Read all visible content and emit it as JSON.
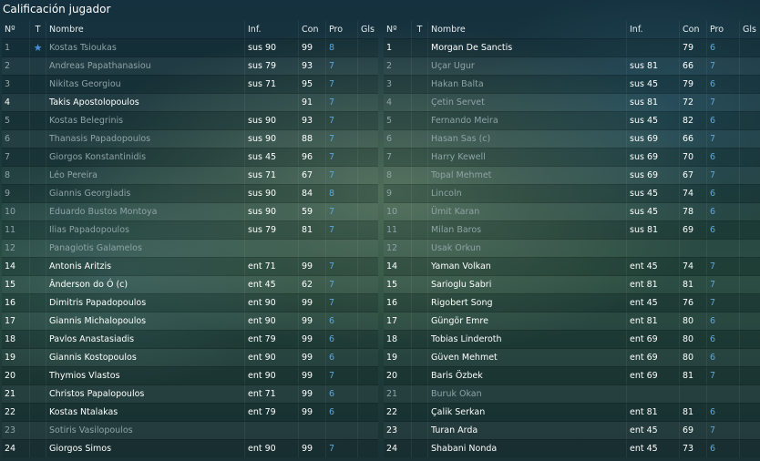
{
  "window": {
    "title": "Calificación jugador"
  },
  "columns": {
    "num": "Nº",
    "t": "T",
    "name": "Nombre",
    "inf": "Inf.",
    "con": "Con",
    "pro": "Pro",
    "gls": "Gls"
  },
  "left": [
    {
      "num": "1",
      "t": "star",
      "name": "Kostas Tsioukas",
      "inf": "sus 90",
      "con": "99",
      "pro": "8",
      "style": "dim"
    },
    {
      "num": "2",
      "t": "",
      "name": "Andreas Papathanasiou",
      "inf": "sus 79",
      "con": "93",
      "pro": "7",
      "style": "dim"
    },
    {
      "num": "3",
      "t": "",
      "name": "Nikitas Georgiou",
      "inf": "sus 71",
      "con": "95",
      "pro": "7",
      "style": "dim"
    },
    {
      "num": "4",
      "t": "",
      "name": "Takis Apostolopoulos",
      "inf": "",
      "con": "91",
      "pro": "7",
      "style": "bright"
    },
    {
      "num": "5",
      "t": "",
      "name": "Kostas Belegrinis",
      "inf": "sus 90",
      "con": "93",
      "pro": "7",
      "style": "dim"
    },
    {
      "num": "6",
      "t": "",
      "name": "Thanasis Papadopoulos",
      "inf": "sus 90",
      "con": "88",
      "pro": "7",
      "style": "dim"
    },
    {
      "num": "7",
      "t": "",
      "name": "Giorgos Konstantinidis",
      "inf": "sus 45",
      "con": "96",
      "pro": "7",
      "style": "dim"
    },
    {
      "num": "8",
      "t": "",
      "name": "Léo Pereira",
      "inf": "sus 71",
      "con": "67",
      "pro": "7",
      "style": "dim"
    },
    {
      "num": "9",
      "t": "",
      "name": "Giannis Georgiadis",
      "inf": "sus 90",
      "con": "84",
      "pro": "8",
      "style": "dim"
    },
    {
      "num": "10",
      "t": "",
      "name": "Eduardo Bustos Montoya",
      "inf": "sus 90",
      "con": "59",
      "pro": "7",
      "style": "dim"
    },
    {
      "num": "11",
      "t": "",
      "name": "Ilias Papadopoulos",
      "inf": "sus 79",
      "con": "81",
      "pro": "7",
      "style": "dim"
    },
    {
      "num": "12",
      "t": "",
      "name": "Panagiotis Galamelos",
      "inf": "",
      "con": "",
      "pro": "",
      "style": "dim"
    },
    {
      "num": "14",
      "t": "",
      "name": "Antonis Aritzis",
      "inf": "ent 71",
      "con": "99",
      "pro": "7",
      "style": "bright"
    },
    {
      "num": "15",
      "t": "",
      "name": "Ânderson do Ó (c)",
      "inf": "ent 45",
      "con": "62",
      "pro": "7",
      "style": "bright"
    },
    {
      "num": "16",
      "t": "",
      "name": "Dimitris Papadopoulos",
      "inf": "ent 90",
      "con": "99",
      "pro": "7",
      "style": "bright"
    },
    {
      "num": "17",
      "t": "",
      "name": "Giannis Michalopoulos",
      "inf": "ent 90",
      "con": "99",
      "pro": "6",
      "style": "bright"
    },
    {
      "num": "18",
      "t": "",
      "name": "Pavlos Anastasiadis",
      "inf": "ent 79",
      "con": "99",
      "pro": "6",
      "style": "bright"
    },
    {
      "num": "19",
      "t": "",
      "name": "Giannis Kostopoulos",
      "inf": "ent 90",
      "con": "99",
      "pro": "6",
      "style": "bright"
    },
    {
      "num": "20",
      "t": "",
      "name": "Thymios Vlastos",
      "inf": "ent 90",
      "con": "99",
      "pro": "7",
      "style": "bright"
    },
    {
      "num": "21",
      "t": "",
      "name": "Christos Papalopoulos",
      "inf": "ent 71",
      "con": "99",
      "pro": "6",
      "style": "bright"
    },
    {
      "num": "22",
      "t": "",
      "name": "Kostas Ntalakas",
      "inf": "ent 79",
      "con": "99",
      "pro": "6",
      "style": "bright"
    },
    {
      "num": "23",
      "t": "",
      "name": "Sotiris Vasilopoulos",
      "inf": "",
      "con": "",
      "pro": "",
      "style": "dim"
    },
    {
      "num": "24",
      "t": "",
      "name": "Giorgos Simos",
      "inf": "ent 90",
      "con": "99",
      "pro": "7",
      "style": "bright"
    }
  ],
  "right": [
    {
      "num": "1",
      "t": "",
      "name": "Morgan De Sanctis",
      "inf": "",
      "con": "79",
      "pro": "6",
      "style": "bright"
    },
    {
      "num": "2",
      "t": "",
      "name": "Uçar Ugur",
      "inf": "sus 81",
      "con": "66",
      "pro": "7",
      "style": "dim"
    },
    {
      "num": "3",
      "t": "",
      "name": "Hakan Balta",
      "inf": "sus 45",
      "con": "79",
      "pro": "6",
      "style": "dim"
    },
    {
      "num": "4",
      "t": "",
      "name": "Çetin Servet",
      "inf": "sus 81",
      "con": "72",
      "pro": "7",
      "style": "dim"
    },
    {
      "num": "5",
      "t": "",
      "name": "Fernando Meira",
      "inf": "sus 45",
      "con": "82",
      "pro": "6",
      "style": "dim"
    },
    {
      "num": "6",
      "t": "",
      "name": "Hasan Sas (c)",
      "inf": "sus 69",
      "con": "66",
      "pro": "7",
      "style": "dim"
    },
    {
      "num": "7",
      "t": "",
      "name": "Harry Kewell",
      "inf": "sus 69",
      "con": "70",
      "pro": "6",
      "style": "dim"
    },
    {
      "num": "8",
      "t": "",
      "name": "Topal Mehmet",
      "inf": "sus 69",
      "con": "67",
      "pro": "7",
      "style": "dim"
    },
    {
      "num": "9",
      "t": "",
      "name": "Lincoln",
      "inf": "sus 45",
      "con": "74",
      "pro": "6",
      "style": "dim"
    },
    {
      "num": "10",
      "t": "",
      "name": "Ümit Karan",
      "inf": "sus 45",
      "con": "78",
      "pro": "6",
      "style": "dim"
    },
    {
      "num": "11",
      "t": "",
      "name": "Milan Baros",
      "inf": "sus 81",
      "con": "69",
      "pro": "6",
      "style": "dim"
    },
    {
      "num": "12",
      "t": "",
      "name": "Usak Orkun",
      "inf": "",
      "con": "",
      "pro": "",
      "style": "dim"
    },
    {
      "num": "14",
      "t": "",
      "name": "Yaman Volkan",
      "inf": "ent 45",
      "con": "74",
      "pro": "7",
      "style": "bright"
    },
    {
      "num": "15",
      "t": "",
      "name": "Sarioglu Sabri",
      "inf": "ent 81",
      "con": "81",
      "pro": "7",
      "style": "bright"
    },
    {
      "num": "16",
      "t": "",
      "name": "Rigobert Song",
      "inf": "ent 45",
      "con": "76",
      "pro": "7",
      "style": "bright"
    },
    {
      "num": "17",
      "t": "",
      "name": "Güngör Emre",
      "inf": "ent 81",
      "con": "80",
      "pro": "6",
      "style": "bright"
    },
    {
      "num": "18",
      "t": "",
      "name": "Tobias Linderoth",
      "inf": "ent 69",
      "con": "80",
      "pro": "6",
      "style": "bright"
    },
    {
      "num": "19",
      "t": "",
      "name": "Güven Mehmet",
      "inf": "ent 69",
      "con": "80",
      "pro": "6",
      "style": "bright"
    },
    {
      "num": "20",
      "t": "",
      "name": "Baris Özbek",
      "inf": "ent 69",
      "con": "81",
      "pro": "7",
      "style": "bright"
    },
    {
      "num": "21",
      "t": "",
      "name": "Buruk Okan",
      "inf": "",
      "con": "",
      "pro": "",
      "style": "dim"
    },
    {
      "num": "22",
      "t": "",
      "name": "Çalik Serkan",
      "inf": "ent 81",
      "con": "81",
      "pro": "6",
      "style": "bright"
    },
    {
      "num": "23",
      "t": "",
      "name": "Turan Arda",
      "inf": "ent 45",
      "con": "69",
      "pro": "7",
      "style": "bright"
    },
    {
      "num": "24",
      "t": "",
      "name": "Shabani Nonda",
      "inf": "ent 45",
      "con": "73",
      "pro": "6",
      "style": "bright"
    }
  ],
  "colors": {
    "pro": "#5da6dc",
    "dim_text": "#8fa3a6",
    "bright_text": "#ffffff",
    "star": "#4a8fd8"
  }
}
